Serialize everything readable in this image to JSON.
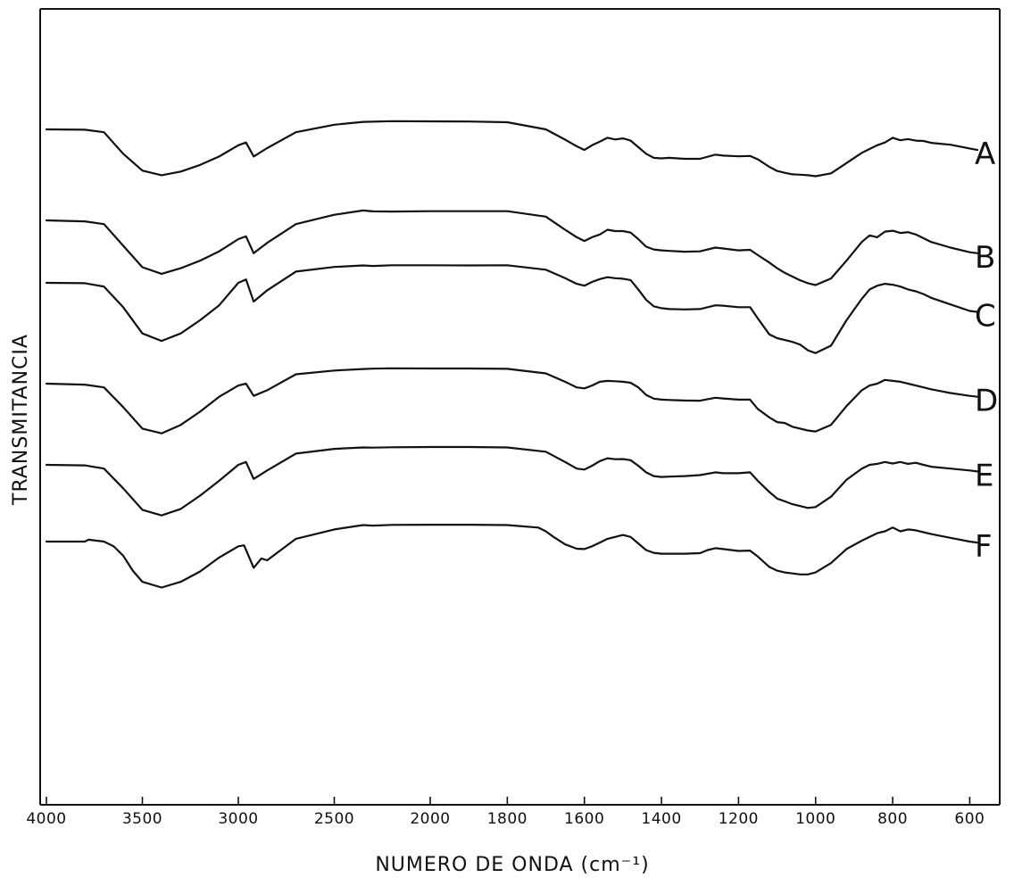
{
  "chart_data": {
    "type": "line",
    "title": "",
    "xlabel": "NUMERO DE ONDA (cm⁻¹)",
    "ylabel": "TRANSMITANCIA",
    "xlim": [
      4000,
      550
    ],
    "x_break_at": 2000,
    "xticks": [
      4000,
      3500,
      3000,
      2500,
      2000,
      1800,
      1600,
      1400,
      1200,
      1000,
      800,
      600
    ],
    "xtick_labels": [
      "4000",
      "3500",
      "3000",
      "2500",
      "2000",
      "1800",
      "1600",
      "1400",
      "1200",
      "1000",
      "800",
      "600"
    ],
    "ylim": [
      0,
      100
    ],
    "grid": false,
    "series": [
      {
        "name": "A",
        "x": [
          4000,
          3800,
          3700,
          3600,
          3500,
          3400,
          3300,
          3200,
          3100,
          3000,
          2960,
          2920,
          2850,
          2700,
          2500,
          2350,
          2200,
          2000,
          1900,
          1800,
          1700,
          1650,
          1620,
          1600,
          1580,
          1560,
          1540,
          1520,
          1500,
          1480,
          1460,
          1440,
          1420,
          1400,
          1380,
          1340,
          1300,
          1260,
          1240,
          1200,
          1170,
          1150,
          1120,
          1100,
          1080,
          1060,
          1040,
          1020,
          1000,
          960,
          920,
          880,
          860,
          840,
          820,
          800,
          780,
          760,
          740,
          720,
          700,
          680,
          650,
          600,
          580
        ],
        "values": [
          90.0,
          89.8,
          88.5,
          77.0,
          68.0,
          65.5,
          67.5,
          71.0,
          75.5,
          81.5,
          83.0,
          75.5,
          80.0,
          88.5,
          92.5,
          94.0,
          94.4,
          94.3,
          94.2,
          93.8,
          90.0,
          84.5,
          81.0,
          79.0,
          81.5,
          83.5,
          85.5,
          84.6,
          85.2,
          84.0,
          80.5,
          77.0,
          74.8,
          74.5,
          74.8,
          74.3,
          74.3,
          76.5,
          76.0,
          75.6,
          75.8,
          74.0,
          70.0,
          67.8,
          66.8,
          66.0,
          65.8,
          65.5,
          65.0,
          66.5,
          72.0,
          77.5,
          79.5,
          81.5,
          83.0,
          85.5,
          84.2,
          84.8,
          84.0,
          83.8,
          82.8,
          82.4,
          81.8,
          79.8,
          79.0
        ]
      },
      {
        "name": "B",
        "x": [
          4000,
          3800,
          3700,
          3600,
          3500,
          3400,
          3300,
          3200,
          3100,
          3000,
          2960,
          2920,
          2850,
          2700,
          2500,
          2350,
          2300,
          2200,
          2000,
          1900,
          1800,
          1700,
          1650,
          1620,
          1600,
          1580,
          1560,
          1540,
          1520,
          1500,
          1480,
          1460,
          1440,
          1420,
          1400,
          1380,
          1340,
          1300,
          1260,
          1240,
          1200,
          1170,
          1150,
          1120,
          1100,
          1080,
          1060,
          1040,
          1020,
          1000,
          960,
          920,
          880,
          860,
          840,
          820,
          800,
          780,
          760,
          740,
          720,
          700,
          650,
          600,
          580
        ],
        "values": [
          79.5,
          79.0,
          77.5,
          66.0,
          54.5,
          51.0,
          54.0,
          58.0,
          63.0,
          69.5,
          71.0,
          62.0,
          67.5,
          77.5,
          82.5,
          84.8,
          84.3,
          84.2,
          84.4,
          84.4,
          84.4,
          81.5,
          74.5,
          70.5,
          68.5,
          70.5,
          72.0,
          74.5,
          73.8,
          73.8,
          73.0,
          69.5,
          65.5,
          64.0,
          63.5,
          63.2,
          62.8,
          63.0,
          65.0,
          64.5,
          63.5,
          63.8,
          61.0,
          57.0,
          54.0,
          51.5,
          49.5,
          47.5,
          46.0,
          45.0,
          48.5,
          58.0,
          68.0,
          71.5,
          70.5,
          73.5,
          74.0,
          72.8,
          73.2,
          72.0,
          70.0,
          68.0,
          65.0,
          62.5,
          62.0
        ]
      },
      {
        "name": "C",
        "x": [
          4000,
          3800,
          3700,
          3600,
          3500,
          3400,
          3300,
          3200,
          3100,
          3000,
          2960,
          2920,
          2850,
          2700,
          2500,
          2350,
          2300,
          2200,
          2000,
          1900,
          1800,
          1700,
          1650,
          1620,
          1600,
          1580,
          1560,
          1540,
          1520,
          1500,
          1480,
          1460,
          1440,
          1420,
          1400,
          1380,
          1340,
          1300,
          1260,
          1240,
          1200,
          1170,
          1150,
          1120,
          1100,
          1080,
          1060,
          1040,
          1020,
          1000,
          960,
          920,
          880,
          860,
          840,
          820,
          800,
          780,
          760,
          740,
          720,
          700,
          650,
          600,
          580
        ],
        "values": [
          72.0,
          71.8,
          70.0,
          59.0,
          45.0,
          41.0,
          45.0,
          52.0,
          60.0,
          72.0,
          73.8,
          62.0,
          68.0,
          78.0,
          80.5,
          81.3,
          81.0,
          81.4,
          81.4,
          81.3,
          81.4,
          79.0,
          74.5,
          71.5,
          70.5,
          72.5,
          74.0,
          75.0,
          74.5,
          74.2,
          73.5,
          68.5,
          63.0,
          59.5,
          58.5,
          58.0,
          57.8,
          58.0,
          60.0,
          59.8,
          59.0,
          59.0,
          53.0,
          44.5,
          42.5,
          41.5,
          40.5,
          39.0,
          36.0,
          34.5,
          38.5,
          52.0,
          63.5,
          68.5,
          70.5,
          71.5,
          71.0,
          70.0,
          68.5,
          67.5,
          66.0,
          64.0,
          60.5,
          57.0,
          56.5
        ]
      },
      {
        "name": "D",
        "x": [
          4000,
          3800,
          3700,
          3600,
          3500,
          3400,
          3300,
          3200,
          3100,
          3000,
          2960,
          2920,
          2850,
          2700,
          2500,
          2350,
          2300,
          2200,
          2000,
          1900,
          1800,
          1700,
          1650,
          1620,
          1600,
          1580,
          1560,
          1540,
          1520,
          1500,
          1480,
          1460,
          1440,
          1420,
          1400,
          1380,
          1340,
          1300,
          1260,
          1240,
          1200,
          1170,
          1150,
          1120,
          1100,
          1080,
          1060,
          1040,
          1020,
          1000,
          960,
          920,
          880,
          860,
          840,
          820,
          800,
          780,
          760,
          740,
          720,
          700,
          650,
          600,
          580
        ],
        "values": [
          58.5,
          58.0,
          56.5,
          46.0,
          34.5,
          32.0,
          36.5,
          43.5,
          51.5,
          57.5,
          58.5,
          52.0,
          55.0,
          63.5,
          65.5,
          66.3,
          66.5,
          66.7,
          66.6,
          66.6,
          66.4,
          64.0,
          59.5,
          56.5,
          56.0,
          57.5,
          59.5,
          60.0,
          59.8,
          59.5,
          59.0,
          56.5,
          52.5,
          50.5,
          50.0,
          49.8,
          49.5,
          49.4,
          51.0,
          50.6,
          50.0,
          50.0,
          45.0,
          40.5,
          38.0,
          37.5,
          35.5,
          34.5,
          33.5,
          33.0,
          36.5,
          46.5,
          55.0,
          57.5,
          58.5,
          60.5,
          60.0,
          59.5,
          58.5,
          57.5,
          56.5,
          55.5,
          53.5,
          52.0,
          51.5
        ]
      },
      {
        "name": "E",
        "x": [
          4000,
          3800,
          3700,
          3600,
          3500,
          3400,
          3300,
          3200,
          3100,
          3000,
          2960,
          2920,
          2850,
          2700,
          2500,
          2350,
          2300,
          2200,
          2000,
          1900,
          1800,
          1700,
          1650,
          1620,
          1600,
          1580,
          1560,
          1540,
          1520,
          1500,
          1480,
          1460,
          1440,
          1420,
          1400,
          1380,
          1340,
          1300,
          1260,
          1240,
          1200,
          1170,
          1150,
          1120,
          1100,
          1080,
          1060,
          1040,
          1020,
          1000,
          960,
          920,
          880,
          860,
          840,
          820,
          800,
          780,
          760,
          740,
          720,
          700,
          650,
          600,
          580
        ],
        "values": [
          46.5,
          46.2,
          44.5,
          34.0,
          22.5,
          19.5,
          23.0,
          30.0,
          38.0,
          46.5,
          48.0,
          39.0,
          43.5,
          52.5,
          55.0,
          55.8,
          55.7,
          55.9,
          56.0,
          56.0,
          55.8,
          53.5,
          48.0,
          44.5,
          44.0,
          46.0,
          48.5,
          50.0,
          49.5,
          49.6,
          49.0,
          46.0,
          42.5,
          40.5,
          40.0,
          40.2,
          40.5,
          41.0,
          42.5,
          42.0,
          42.0,
          42.5,
          38.0,
          32.0,
          28.5,
          27.0,
          25.5,
          24.5,
          23.5,
          24.0,
          29.5,
          38.5,
          44.5,
          46.5,
          47.0,
          48.0,
          47.2,
          48.0,
          47.0,
          47.6,
          46.5,
          45.5,
          44.5,
          43.5,
          43.0
        ]
      },
      {
        "name": "F",
        "x": [
          4000,
          3800,
          3780,
          3700,
          3650,
          3600,
          3550,
          3500,
          3400,
          3300,
          3200,
          3100,
          3000,
          2970,
          2920,
          2880,
          2850,
          2700,
          2500,
          2350,
          2300,
          2200,
          2000,
          1900,
          1800,
          1720,
          1700,
          1680,
          1650,
          1620,
          1600,
          1580,
          1560,
          1540,
          1520,
          1500,
          1480,
          1460,
          1440,
          1420,
          1400,
          1380,
          1340,
          1300,
          1280,
          1260,
          1240,
          1200,
          1170,
          1150,
          1120,
          1100,
          1080,
          1060,
          1040,
          1020,
          1000,
          960,
          920,
          880,
          860,
          840,
          820,
          800,
          780,
          760,
          740,
          720,
          700,
          650,
          600,
          580
        ],
        "values": [
          36.0,
          36.0,
          37.0,
          36.0,
          33.5,
          28.5,
          20.5,
          14.5,
          11.5,
          14.5,
          20.0,
          27.5,
          33.5,
          34.0,
          22.0,
          27.0,
          26.0,
          37.5,
          42.5,
          44.8,
          44.5,
          44.9,
          45.0,
          45.0,
          44.8,
          43.5,
          41.5,
          38.5,
          34.5,
          32.2,
          32.0,
          33.5,
          35.5,
          37.5,
          38.5,
          39.5,
          38.5,
          35.0,
          31.5,
          30.0,
          29.5,
          29.5,
          29.5,
          29.8,
          31.5,
          32.5,
          32.0,
          31.0,
          31.2,
          28.0,
          22.5,
          20.5,
          19.5,
          19.0,
          18.5,
          18.5,
          19.5,
          24.5,
          32.0,
          36.5,
          38.5,
          40.5,
          41.5,
          43.5,
          41.5,
          42.5,
          42.0,
          41.0,
          40.0,
          38.0,
          36.0,
          35.5
        ]
      }
    ]
  }
}
